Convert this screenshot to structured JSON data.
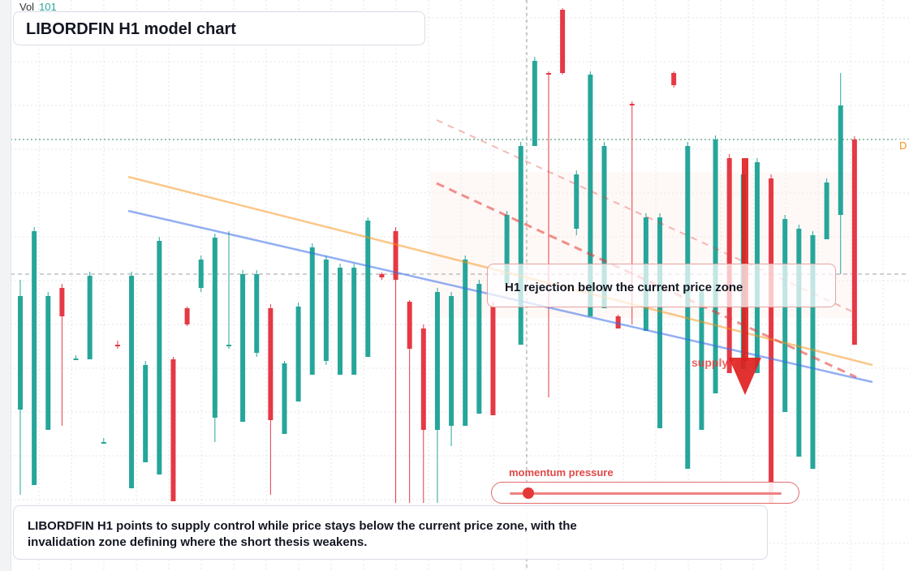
{
  "header": {
    "vol_label": "Vol",
    "vol_value": "101"
  },
  "title": "LIBORDFIN H1 model chart",
  "callout_text": "H1 rejection below the current price zone",
  "supply_label": "supply s",
  "momentum": {
    "label": "momentum pressure",
    "level": 0.07
  },
  "summary_text": "LIBORDFIN H1 points to supply control while price stays below the current price zone, with the invalidation zone defining where the short thesis weakens.",
  "edge_tag": "D",
  "colors": {
    "up": "#26a69a",
    "down": "#e53945",
    "orange": "#f7931a",
    "blue": "#3b6fe8",
    "red": "#e53935"
  },
  "chart_data": {
    "type": "candlestick",
    "title": "LIBORDFIN H1 model chart",
    "grid": true,
    "candles": [
      {
        "c": "up",
        "o": 505,
        "cl": 365,
        "h": 345,
        "l": 610
      },
      {
        "c": "up",
        "o": 598,
        "cl": 285,
        "h": 280,
        "l": 598
      },
      {
        "c": "up",
        "o": 530,
        "cl": 365,
        "h": 360,
        "l": 530
      },
      {
        "c": "down",
        "o": 355,
        "cl": 390,
        "h": 350,
        "l": 525
      },
      {
        "c": "up",
        "o": 443,
        "cl": 442,
        "h": 438,
        "l": 443
      },
      {
        "c": "up",
        "o": 443,
        "cl": 340,
        "h": 335,
        "l": 443
      },
      {
        "c": "up",
        "o": 545,
        "cl": 545,
        "h": 540,
        "l": 545
      },
      {
        "c": "down",
        "o": 425,
        "cl": 427,
        "h": 420,
        "l": 430
      },
      {
        "c": "up",
        "o": 602,
        "cl": 340,
        "h": 335,
        "l": 602
      },
      {
        "c": "up",
        "o": 570,
        "cl": 450,
        "h": 445,
        "l": 570
      },
      {
        "c": "up",
        "o": 585,
        "cl": 297,
        "h": 292,
        "l": 585
      },
      {
        "c": "down",
        "o": 443,
        "cl": 618,
        "h": 440,
        "l": 618
      },
      {
        "c": "down",
        "o": 380,
        "cl": 400,
        "h": 378,
        "l": 402
      },
      {
        "c": "up",
        "o": 355,
        "cl": 320,
        "h": 315,
        "l": 360
      },
      {
        "c": "up",
        "o": 515,
        "cl": 293,
        "h": 288,
        "l": 545
      },
      {
        "c": "up",
        "o": 425,
        "cl": 425,
        "h": 285,
        "l": 430
      },
      {
        "c": "up",
        "o": 520,
        "cl": 338,
        "h": 333,
        "l": 520
      },
      {
        "c": "up",
        "o": 435,
        "cl": 338,
        "h": 333,
        "l": 440
      },
      {
        "c": "down",
        "o": 380,
        "cl": 518,
        "h": 375,
        "l": 610
      },
      {
        "c": "up",
        "o": 535,
        "cl": 448,
        "h": 445,
        "l": 535
      },
      {
        "c": "up",
        "o": 495,
        "cl": 378,
        "h": 373,
        "l": 495
      },
      {
        "c": "up",
        "o": 462,
        "cl": 305,
        "h": 300,
        "l": 462
      },
      {
        "c": "up",
        "o": 445,
        "cl": 320,
        "h": 315,
        "l": 450
      },
      {
        "c": "up",
        "o": 462,
        "cl": 330,
        "h": 325,
        "l": 462
      },
      {
        "c": "up",
        "o": 462,
        "cl": 330,
        "h": 325,
        "l": 462
      },
      {
        "c": "up",
        "o": 440,
        "cl": 272,
        "h": 268,
        "l": 440
      },
      {
        "c": "down",
        "o": 338,
        "cl": 342,
        "h": 336,
        "l": 345
      },
      {
        "c": "down",
        "o": 285,
        "cl": 345,
        "h": 280,
        "l": 620
      },
      {
        "c": "down",
        "o": 372,
        "cl": 430,
        "h": 370,
        "l": 620
      },
      {
        "c": "down",
        "o": 405,
        "cl": 530,
        "h": 400,
        "l": 620
      },
      {
        "c": "up",
        "o": 530,
        "cl": 360,
        "h": 355,
        "l": 620
      },
      {
        "c": "up",
        "o": 525,
        "cl": 365,
        "h": 360,
        "l": 550
      },
      {
        "c": "up",
        "o": 525,
        "cl": 320,
        "h": 315,
        "l": 525
      },
      {
        "c": "up",
        "o": 510,
        "cl": 350,
        "h": 345,
        "l": 510
      },
      {
        "c": "down",
        "o": 378,
        "cl": 512,
        "h": 372,
        "l": 512
      },
      {
        "c": "up",
        "o": 350,
        "cl": 265,
        "h": 260,
        "l": 350
      },
      {
        "c": "up",
        "o": 425,
        "cl": 180,
        "h": 175,
        "l": 425
      },
      {
        "c": "up",
        "o": 180,
        "cl": 75,
        "h": 70,
        "l": 180
      },
      {
        "c": "down",
        "o": 90,
        "cl": 92,
        "h": 88,
        "l": 490
      },
      {
        "c": "down",
        "o": 12,
        "cl": 90,
        "h": 10,
        "l": 92
      },
      {
        "c": "up",
        "o": 282,
        "cl": 215,
        "h": 210,
        "l": 290
      },
      {
        "c": "up",
        "o": 390,
        "cl": 92,
        "h": 88,
        "l": 390
      },
      {
        "c": "up",
        "o": 380,
        "cl": 180,
        "h": 175,
        "l": 380
      },
      {
        "c": "down",
        "o": 390,
        "cl": 405,
        "h": 388,
        "l": 405
      },
      {
        "c": "down",
        "o": 128,
        "cl": 130,
        "h": 125,
        "l": 400
      },
      {
        "c": "up",
        "o": 408,
        "cl": 268,
        "h": 263,
        "l": 408
      },
      {
        "c": "up",
        "o": 528,
        "cl": 268,
        "h": 263,
        "l": 528
      },
      {
        "c": "down",
        "o": 90,
        "cl": 105,
        "h": 88,
        "l": 108
      },
      {
        "c": "up",
        "o": 578,
        "cl": 180,
        "h": 175,
        "l": 578
      },
      {
        "c": "up",
        "o": 530,
        "cl": 360,
        "h": 355,
        "l": 530
      },
      {
        "c": "up",
        "o": 485,
        "cl": 172,
        "h": 167,
        "l": 485
      },
      {
        "c": "down",
        "o": 195,
        "cl": 460,
        "h": 190,
        "l": 460
      },
      {
        "c": "up",
        "o": 455,
        "cl": 215,
        "h": 210,
        "l": 455
      },
      {
        "c": "up",
        "o": 460,
        "cl": 200,
        "h": 195,
        "l": 460
      },
      {
        "c": "down",
        "o": 220,
        "cl": 620,
        "h": 215,
        "l": 620
      },
      {
        "c": "up",
        "o": 508,
        "cl": 270,
        "h": 265,
        "l": 508
      },
      {
        "c": "up",
        "o": 563,
        "cl": 282,
        "h": 277,
        "l": 563
      },
      {
        "c": "up",
        "o": 578,
        "cl": 290,
        "h": 285,
        "l": 578
      },
      {
        "c": "up",
        "o": 295,
        "cl": 225,
        "h": 220,
        "l": 295
      },
      {
        "c": "up",
        "o": 265,
        "cl": 130,
        "h": 90,
        "l": 338
      },
      {
        "c": "down",
        "o": 172,
        "cl": 425,
        "h": 168,
        "l": 425
      }
    ]
  }
}
